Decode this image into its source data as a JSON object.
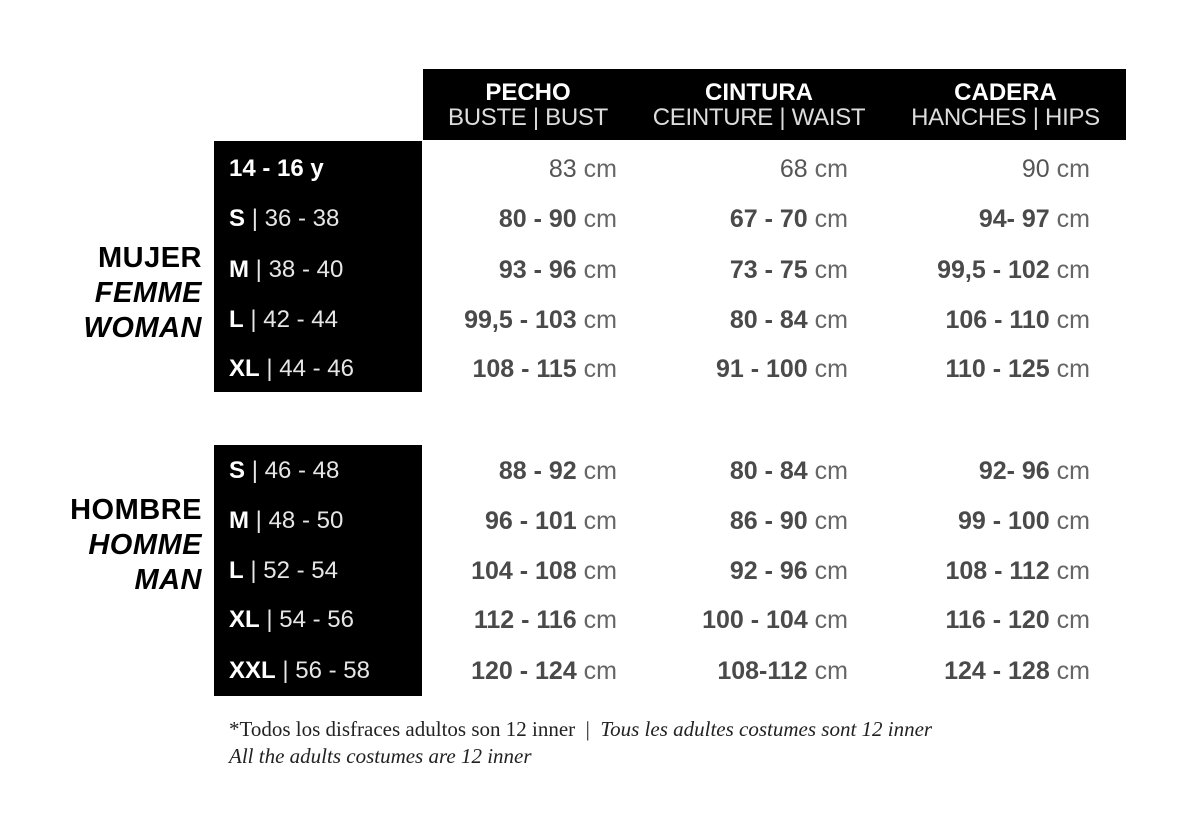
{
  "header": {
    "columns": [
      {
        "title": "PECHO",
        "subtitle": "BUSTE | BUST"
      },
      {
        "title": "CINTURA",
        "subtitle": "CEINTURE | WAIST"
      },
      {
        "title": "CADERA",
        "subtitle": "HANCHES | HIPS"
      }
    ]
  },
  "groups": [
    {
      "labels": [
        "MUJER",
        "FEMME",
        "WOMAN"
      ],
      "rows": [
        {
          "size": "14 - 16 y",
          "range": "",
          "values": [
            {
              "num": "83",
              "unit": "cm",
              "plain": true
            },
            {
              "num": "68",
              "unit": "cm",
              "plain": true
            },
            {
              "num": "90",
              "unit": "cm",
              "plain": true
            }
          ]
        },
        {
          "size": "S",
          "range": "| 36 - 38",
          "values": [
            {
              "num": "80 - 90",
              "unit": "cm"
            },
            {
              "num": "67 - 70",
              "unit": "cm"
            },
            {
              "num": "94- 97",
              "unit": "cm"
            }
          ]
        },
        {
          "size": "M",
          "range": "| 38 - 40",
          "values": [
            {
              "num": "93 - 96",
              "unit": "cm"
            },
            {
              "num": "73 - 75",
              "unit": "cm"
            },
            {
              "num": "99,5 - 102",
              "unit": "cm"
            }
          ]
        },
        {
          "size": "L",
          "range": "| 42 - 44",
          "values": [
            {
              "num": "99,5 - 103",
              "unit": "cm"
            },
            {
              "num": "80 - 84",
              "unit": "cm"
            },
            {
              "num": "106 - 110",
              "unit": "cm"
            }
          ]
        },
        {
          "size": "XL",
          "range": "| 44 - 46",
          "values": [
            {
              "num": "108 - 115",
              "unit": "cm"
            },
            {
              "num": "91 - 100",
              "unit": "cm"
            },
            {
              "num": "110 - 125",
              "unit": "cm"
            }
          ]
        }
      ]
    },
    {
      "labels": [
        "HOMBRE",
        "HOMME",
        "MAN"
      ],
      "rows": [
        {
          "size": "S",
          "range": "| 46 - 48",
          "values": [
            {
              "num": "88 - 92",
              "unit": "cm"
            },
            {
              "num": "80 - 84",
              "unit": "cm"
            },
            {
              "num": "92- 96",
              "unit": "cm"
            }
          ]
        },
        {
          "size": "M",
          "range": "| 48 - 50",
          "values": [
            {
              "num": "96 - 101",
              "unit": "cm"
            },
            {
              "num": "86 - 90",
              "unit": "cm"
            },
            {
              "num": "99 - 100",
              "unit": "cm"
            }
          ]
        },
        {
          "size": "L",
          "range": "| 52 - 54",
          "values": [
            {
              "num": "104 - 108",
              "unit": "cm"
            },
            {
              "num": "92 - 96",
              "unit": "cm"
            },
            {
              "num": "108 - 112",
              "unit": "cm"
            }
          ]
        },
        {
          "size": "XL",
          "range": "| 54 - 56",
          "values": [
            {
              "num": "112 - 116",
              "unit": "cm"
            },
            {
              "num": "100 - 104",
              "unit": "cm"
            },
            {
              "num": "116 - 120",
              "unit": "cm"
            }
          ]
        },
        {
          "size": "XXL",
          "range": "| 56 - 58",
          "values": [
            {
              "num": "120 - 124",
              "unit": "cm"
            },
            {
              "num": "108-112",
              "unit": "cm"
            },
            {
              "num": "124 - 128",
              "unit": "cm"
            }
          ]
        }
      ]
    }
  ],
  "footnote": {
    "spanish": "*Todos los disfraces adultos son 12 inner",
    "separator": "|",
    "french": "Tous les adultes costumes sont 12 inner",
    "english": "All the adults costumes are 12 inner"
  }
}
